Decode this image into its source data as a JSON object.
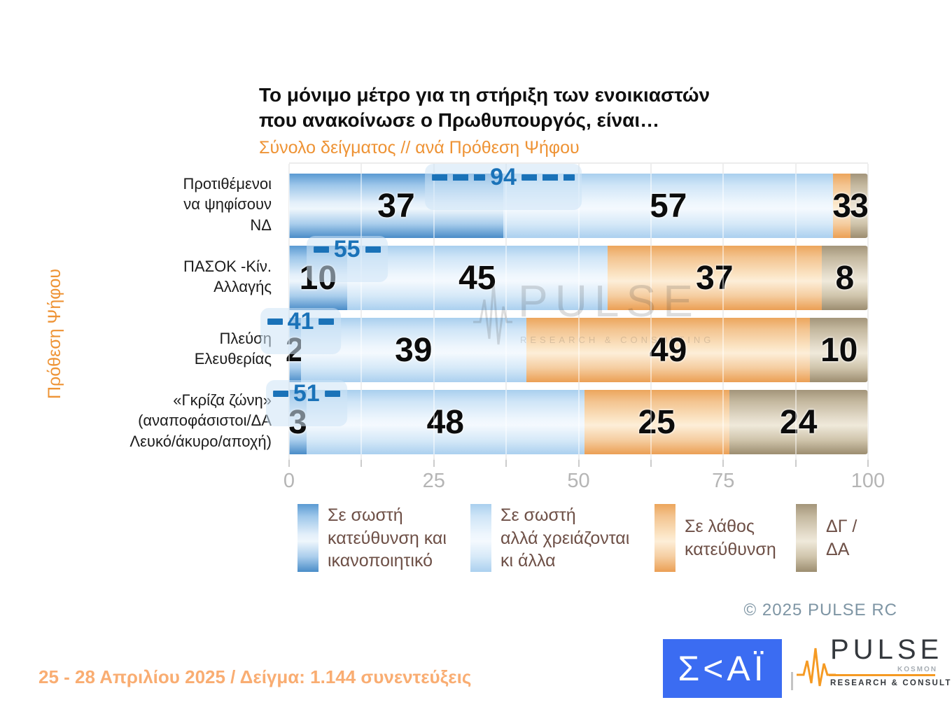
{
  "header": {
    "title": "Το μόνιμο μέτρο για τη στήριξη των ενοικιαστών\nπου ανακοίνωσε ο Πρωθυπουργός, είναι…",
    "subtitle": "Σύνολο δείγματος // ανά Πρόθεση Ψήφου"
  },
  "chart_data": {
    "type": "bar",
    "stacked": true,
    "orientation": "horizontal",
    "title": "Το μόνιμο μέτρο για τη στήριξη των ενοικιαστών που ανακοίνωσε ο Πρωθυπουργός, είναι…",
    "subtitle": "Σύνολο δείγματος // ανά Πρόθεση Ψήφου",
    "ylabel": "Πρόθεση Ψήφου",
    "xlim": [
      0,
      100
    ],
    "xticks": [
      0,
      25,
      50,
      75,
      100
    ],
    "minor_tick_step": 12.5,
    "grid": true,
    "legend_position": "bottom",
    "categories": [
      "Προτιθέμενοι να ψηφίσουν ΝΔ",
      "ΠΑΣΟΚ -Κίν. Αλλαγής",
      "Πλεύση Ελευθερίας",
      "«Γκρίζα ζώνη» (αναποφάσιστοι/ΔΑ Λευκό/άκυρο/αποχή)"
    ],
    "category_lines": [
      [
        "Προτιθέμενοι",
        "να ψηφίσουν",
        "ΝΔ"
      ],
      [
        "ΠΑΣΟΚ -Κίν.",
        "Αλλαγής"
      ],
      [
        "Πλεύση",
        "Ελευθερίας"
      ],
      [
        "«Γκρίζα ζώνη»",
        "(αναποφάσιστοι/ΔΑ",
        "Λευκό/άκυρο/αποχή)"
      ]
    ],
    "series": [
      {
        "name": "Σε σωστή κατεύθυνση και ικανοποιητικό",
        "color": "#4a8fcd",
        "values": [
          37,
          10,
          2,
          3
        ]
      },
      {
        "name": "Σε σωστή αλλά χρειάζονται κι άλλα",
        "color": "#b5d6f2",
        "values": [
          57,
          45,
          39,
          48
        ]
      },
      {
        "name": "Σε λάθος κατεύθυνση",
        "color": "#efa75f",
        "values": [
          3,
          37,
          49,
          25
        ]
      },
      {
        "name": "ΔΓ / ΔΑ",
        "color": "#b1a489",
        "values": [
          3,
          8,
          10,
          24
        ]
      }
    ],
    "callouts": {
      "values": [
        94,
        55,
        41,
        51
      ],
      "dashes": [
        3,
        1,
        1,
        1
      ],
      "color": "#1a72b8"
    }
  },
  "legend": {
    "items": [
      {
        "label": "Σε σωστή\nκατεύθυνση και\nικανοποιητικό",
        "color": "#4a8fcd"
      },
      {
        "label": "Σε σωστή\nαλλά χρειάζονται\nκι άλλα",
        "color": "#b5d6f2"
      },
      {
        "label": "Σε λάθος\nκατεύθυνση",
        "color": "#efa75f"
      },
      {
        "label": "ΔΓ /\nΔΑ",
        "color": "#b1a489"
      }
    ]
  },
  "watermark": {
    "name": "PULSE",
    "sub": "RESEARCH & CONSULTING"
  },
  "footer": {
    "copyright": "© 2025 PULSE RC",
    "fieldwork": "25 - 28 Απριλίου 2025  /  Δείγμα:  1.144 συνεντεύξεις"
  },
  "logos": {
    "skai_text": "Σ<ΑΪ",
    "pulse_name": "PULSE",
    "pulse_kosmon": "KOSMON",
    "pulse_sub": "RESEARCH & CONSULTING"
  },
  "colors": {
    "accent_orange": "#ee9335",
    "callout_blue": "#1a72b8",
    "footer_orange": "#f9ad72",
    "copyright_gray": "#7e95a4",
    "skai_blue": "#3b6cf2",
    "pulse_orange": "#f59a23"
  }
}
